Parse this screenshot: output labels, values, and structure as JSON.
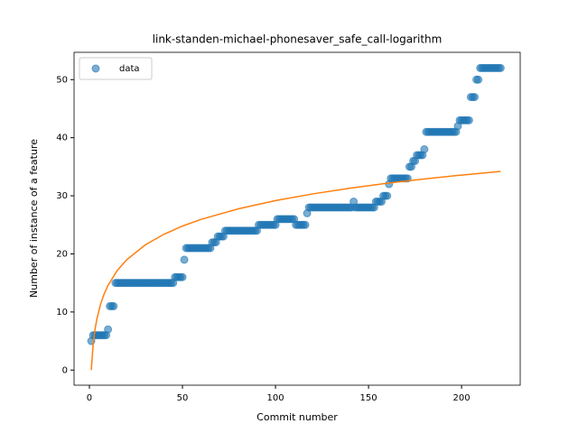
{
  "chart_data": {
    "type": "scatter",
    "title": "link-standen-michael-phonesaver_safe_call-logarithm",
    "x_label": "Commit number",
    "y_label": "Number of instance of a feature",
    "xlim": [
      -8.25,
      231.5
    ],
    "ylim": [
      -2.6,
      54.7
    ],
    "xticks": [
      0,
      50,
      100,
      150,
      200
    ],
    "yticks": [
      0,
      10,
      20,
      30,
      40,
      50
    ],
    "legend": "upper left",
    "series": [
      {
        "name": "data",
        "type": "scatter",
        "color": "#1f77b4",
        "x": [
          1,
          2,
          3,
          4,
          5,
          6,
          7,
          8,
          9,
          10,
          11,
          12,
          13,
          14,
          15,
          16,
          17,
          18,
          19,
          20,
          21,
          22,
          23,
          24,
          25,
          26,
          27,
          28,
          29,
          30,
          31,
          32,
          33,
          34,
          35,
          36,
          37,
          38,
          39,
          40,
          41,
          42,
          43,
          44,
          45,
          46,
          47,
          48,
          49,
          50,
          51,
          52,
          53,
          54,
          55,
          56,
          57,
          58,
          59,
          60,
          61,
          62,
          63,
          64,
          65,
          66,
          67,
          68,
          69,
          70,
          71,
          72,
          73,
          74,
          75,
          76,
          77,
          78,
          79,
          80,
          81,
          82,
          83,
          84,
          85,
          86,
          87,
          88,
          89,
          90,
          91,
          92,
          93,
          94,
          95,
          96,
          97,
          98,
          99,
          100,
          101,
          102,
          103,
          104,
          105,
          106,
          107,
          108,
          109,
          110,
          111,
          112,
          113,
          114,
          115,
          116,
          117,
          118,
          119,
          120,
          121,
          122,
          123,
          124,
          125,
          126,
          127,
          128,
          129,
          130,
          131,
          132,
          133,
          134,
          135,
          136,
          137,
          138,
          139,
          140,
          141,
          142,
          143,
          144,
          145,
          146,
          147,
          148,
          149,
          150,
          151,
          152,
          153,
          154,
          155,
          156,
          157,
          158,
          159,
          160,
          161,
          162,
          163,
          164,
          165,
          166,
          167,
          168,
          169,
          170,
          171,
          172,
          173,
          174,
          175,
          176,
          177,
          178,
          179,
          180,
          181,
          182,
          183,
          184,
          185,
          186,
          187,
          188,
          189,
          190,
          191,
          192,
          193,
          194,
          195,
          196,
          197,
          198,
          199,
          200,
          201,
          202,
          203,
          204,
          205,
          206,
          207,
          208,
          209,
          210,
          211,
          212,
          213,
          214,
          215,
          216,
          217,
          218,
          219,
          220,
          221
        ],
        "values": [
          5,
          6,
          6,
          6,
          6,
          6,
          6,
          6,
          6,
          7,
          11,
          11,
          11,
          15,
          15,
          15,
          15,
          15,
          15,
          15,
          15,
          15,
          15,
          15,
          15,
          15,
          15,
          15,
          15,
          15,
          15,
          15,
          15,
          15,
          15,
          15,
          15,
          15,
          15,
          15,
          15,
          15,
          15,
          15,
          15,
          16,
          16,
          16,
          16,
          16,
          19,
          21,
          21,
          21,
          21,
          21,
          21,
          21,
          21,
          21,
          21,
          21,
          21,
          21,
          21,
          22,
          22,
          22,
          23,
          23,
          23,
          23,
          24,
          24,
          24,
          24,
          24,
          24,
          24,
          24,
          24,
          24,
          24,
          24,
          24,
          24,
          24,
          24,
          24,
          24,
          25,
          25,
          25,
          25,
          25,
          25,
          25,
          25,
          25,
          25,
          26,
          26,
          26,
          26,
          26,
          26,
          26,
          26,
          26,
          26,
          25,
          25,
          25,
          25,
          25,
          25,
          27,
          28,
          28,
          28,
          28,
          28,
          28,
          28,
          28,
          28,
          28,
          28,
          28,
          28,
          28,
          28,
          28,
          28,
          28,
          28,
          28,
          28,
          28,
          28,
          28,
          29,
          28,
          28,
          28,
          28,
          28,
          28,
          28,
          28,
          28,
          28,
          28,
          29,
          29,
          29,
          29,
          30,
          30,
          30,
          32,
          33,
          33,
          33,
          33,
          33,
          33,
          33,
          33,
          33,
          33,
          35,
          35,
          36,
          36,
          37,
          37,
          37,
          37,
          38,
          41,
          41,
          41,
          41,
          41,
          41,
          41,
          41,
          41,
          41,
          41,
          41,
          41,
          41,
          41,
          41,
          41,
          42,
          43,
          43,
          43,
          43,
          43,
          43,
          47,
          47,
          47,
          50,
          50,
          52,
          52,
          52,
          52,
          52,
          52,
          52,
          52,
          52,
          52,
          52,
          52
        ]
      },
      {
        "type": "line",
        "color": "#ff7f0e",
        "x": [
          1,
          2,
          3,
          4,
          6,
          8,
          10,
          15,
          20,
          30,
          40,
          50,
          60,
          80,
          100,
          120,
          140,
          160,
          180,
          200,
          221
        ],
        "values": [
          0,
          4.39,
          6.96,
          8.78,
          11.35,
          13.18,
          14.59,
          17.16,
          18.98,
          21.55,
          23.37,
          24.79,
          25.94,
          27.76,
          29.18,
          30.33,
          31.31,
          32.16,
          32.9,
          33.57,
          34.2
        ]
      }
    ]
  }
}
